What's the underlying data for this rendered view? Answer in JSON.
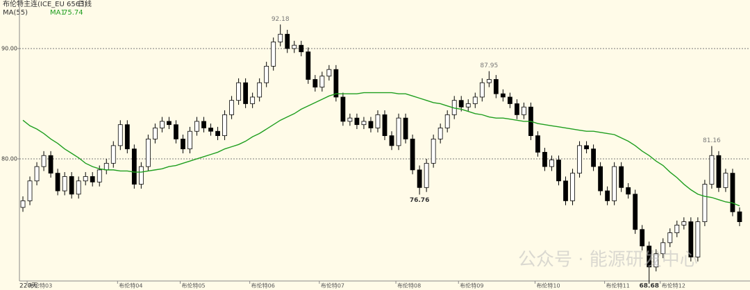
{
  "chart_data": {
    "type": "candlestick",
    "title": "布伦特主连(ICE_EU 6563)",
    "period": "日线",
    "indicator": "MA(55)",
    "ma_label": "MA1",
    "range_label": "220天",
    "watermark": "公众号 · 能源研发中心",
    "ylim": [
      68.93,
      94.4
    ],
    "yticks": [
      {
        "value": 80,
        "label": "80.00"
      },
      {
        "value": 90,
        "label": "90.00"
      }
    ],
    "grid": true,
    "up_color": "#ffffff",
    "down_color": "#000000",
    "ma_color": "#1e9e1e",
    "x_labels": [
      {
        "index": 2,
        "label": "布伦特03"
      },
      {
        "index": 15,
        "label": "布伦特04"
      },
      {
        "index": 24,
        "label": "布伦特05"
      },
      {
        "index": 34,
        "label": "布伦特06"
      },
      {
        "index": 44,
        "label": "布伦特07"
      },
      {
        "index": 55,
        "label": "布伦特08"
      },
      {
        "index": 64,
        "label": "布伦特09"
      },
      {
        "index": 75,
        "label": "布伦特10"
      },
      {
        "index": 85,
        "label": "布伦特11"
      },
      {
        "index": 93,
        "label": "布伦特12"
      }
    ],
    "high_labels": [
      37,
      67,
      99
    ],
    "low_labels": [
      57,
      90
    ],
    "open": [
      75.6,
      76.2,
      78.0,
      79.3,
      80.3,
      78.7,
      77.1,
      78.4,
      76.8,
      78.0,
      78.4,
      77.9,
      79.0,
      79.6,
      81.2,
      83.1,
      80.9,
      77.7,
      79.3,
      81.8,
      82.8,
      83.4,
      83.1,
      81.8,
      80.9,
      82.5,
      83.4,
      82.8,
      82.5,
      82.1,
      84.0,
      85.3,
      86.9,
      85.0,
      85.6,
      86.9,
      88.4,
      90.6,
      91.3,
      90.0,
      90.3,
      89.7,
      87.2,
      86.5,
      87.5,
      88.1,
      85.6,
      83.4,
      83.7,
      83.1,
      83.4,
      82.8,
      84.0,
      82.1,
      81.2,
      83.7,
      81.8,
      79.0,
      77.4,
      79.6,
      81.8,
      82.8,
      84.0,
      85.3,
      84.7,
      85.0,
      85.6,
      86.9,
      87.2,
      85.9,
      85.6,
      85.0,
      84.0,
      84.7,
      82.1,
      80.6,
      79.3,
      79.9,
      78.0,
      76.2,
      78.7,
      81.2,
      80.9,
      79.3,
      77.1,
      76.2,
      79.3,
      77.4,
      76.8,
      73.6,
      72.1,
      70.2,
      71.4,
      72.4,
      73.3,
      74.0,
      74.3,
      71.1,
      74.3,
      77.7,
      80.3,
      77.4,
      78.7,
      75.2
    ],
    "close": [
      76.2,
      78.0,
      79.3,
      80.3,
      78.7,
      77.1,
      78.4,
      76.8,
      78.0,
      78.4,
      77.9,
      79.0,
      79.6,
      81.2,
      83.1,
      80.9,
      77.7,
      79.3,
      81.8,
      82.8,
      83.4,
      83.1,
      81.8,
      80.9,
      82.5,
      83.4,
      82.8,
      82.5,
      82.1,
      84.0,
      85.3,
      86.9,
      85.0,
      85.6,
      86.9,
      88.4,
      90.6,
      91.3,
      90.0,
      90.3,
      89.7,
      87.2,
      86.5,
      87.5,
      88.1,
      85.6,
      83.4,
      83.7,
      83.1,
      83.4,
      82.8,
      84.0,
      82.1,
      81.2,
      83.7,
      81.8,
      79.0,
      77.4,
      79.6,
      81.8,
      82.8,
      84.0,
      85.3,
      84.7,
      85.0,
      85.6,
      86.9,
      87.2,
      85.9,
      85.6,
      85.0,
      84.0,
      84.7,
      82.1,
      80.6,
      79.3,
      79.9,
      78.0,
      76.2,
      78.7,
      81.2,
      80.9,
      79.3,
      77.1,
      76.2,
      79.3,
      77.4,
      76.8,
      73.6,
      72.1,
      70.2,
      71.4,
      72.4,
      73.3,
      74.0,
      74.3,
      71.1,
      74.3,
      77.7,
      80.3,
      77.4,
      78.7,
      75.2,
      74.3
    ],
    "high": [
      76.6,
      78.4,
      79.7,
      80.7,
      80.7,
      79.1,
      78.8,
      78.8,
      78.4,
      78.8,
      78.8,
      79.4,
      80.0,
      81.6,
      83.5,
      83.5,
      81.3,
      79.7,
      82.2,
      83.2,
      83.8,
      83.8,
      83.5,
      82.2,
      82.9,
      83.8,
      83.8,
      83.2,
      82.9,
      84.4,
      85.7,
      87.3,
      87.3,
      86.0,
      87.3,
      88.8,
      91.0,
      92.18,
      91.7,
      90.7,
      90.7,
      90.1,
      87.6,
      87.9,
      88.5,
      88.5,
      86.0,
      84.1,
      84.1,
      83.8,
      83.8,
      84.4,
      84.4,
      82.5,
      84.1,
      84.1,
      82.2,
      79.4,
      80.0,
      82.2,
      83.2,
      84.4,
      85.7,
      85.7,
      85.4,
      86.0,
      87.3,
      87.95,
      87.6,
      86.3,
      86.0,
      85.4,
      85.1,
      85.1,
      82.5,
      81.0,
      80.3,
      80.3,
      78.4,
      79.1,
      81.6,
      81.6,
      81.3,
      79.7,
      77.5,
      79.7,
      79.7,
      77.8,
      77.2,
      74.0,
      72.5,
      71.8,
      72.8,
      73.7,
      74.4,
      74.7,
      74.7,
      74.7,
      78.1,
      81.16,
      80.7,
      79.1,
      79.1,
      75.6
    ],
    "low": [
      75.2,
      75.8,
      77.6,
      78.9,
      78.3,
      76.7,
      76.7,
      76.4,
      76.4,
      77.6,
      77.5,
      77.5,
      78.6,
      79.2,
      80.8,
      80.5,
      77.3,
      77.3,
      78.9,
      81.4,
      82.4,
      82.7,
      81.4,
      80.5,
      80.5,
      82.1,
      82.4,
      82.1,
      81.7,
      81.7,
      83.6,
      84.9,
      84.6,
      84.6,
      85.2,
      86.5,
      88.0,
      90.2,
      89.6,
      89.6,
      89.3,
      86.8,
      86.1,
      86.1,
      87.1,
      85.2,
      83.0,
      83.0,
      82.7,
      82.7,
      82.4,
      82.4,
      81.7,
      80.8,
      80.8,
      81.4,
      78.6,
      76.76,
      77.0,
      79.2,
      81.4,
      82.4,
      83.6,
      84.3,
      84.3,
      84.6,
      85.2,
      86.5,
      85.5,
      85.2,
      84.6,
      83.6,
      83.6,
      81.7,
      80.2,
      78.9,
      78.9,
      77.6,
      75.8,
      75.8,
      78.3,
      80.5,
      78.9,
      76.7,
      75.8,
      75.8,
      77.0,
      76.4,
      73.2,
      71.7,
      68.68,
      69.8,
      71.0,
      72.0,
      72.9,
      73.6,
      70.7,
      70.7,
      73.9,
      77.3,
      77.0,
      77.0,
      74.8,
      73.9
    ],
    "ma": [
      83.5,
      83.0,
      82.7,
      82.3,
      81.8,
      81.4,
      80.9,
      80.5,
      80.1,
      79.6,
      79.3,
      79.1,
      79.0,
      79.0,
      78.9,
      78.9,
      78.8,
      78.8,
      78.9,
      79.0,
      79.1,
      79.3,
      79.4,
      79.6,
      79.8,
      80.0,
      80.2,
      80.4,
      80.6,
      80.9,
      81.1,
      81.3,
      81.6,
      82.0,
      82.3,
      82.7,
      83.1,
      83.5,
      83.8,
      84.1,
      84.5,
      84.8,
      85.1,
      85.4,
      85.7,
      85.9,
      85.9,
      85.9,
      85.9,
      86.0,
      86.0,
      86.0,
      86.0,
      86.0,
      85.9,
      85.9,
      85.7,
      85.5,
      85.3,
      85.1,
      85.0,
      84.8,
      84.6,
      84.5,
      84.3,
      84.1,
      84.0,
      83.8,
      83.7,
      83.7,
      83.6,
      83.5,
      83.4,
      83.4,
      83.2,
      83.1,
      83.0,
      82.9,
      82.8,
      82.7,
      82.6,
      82.5,
      82.5,
      82.4,
      82.3,
      82.2,
      81.9,
      81.6,
      81.2,
      80.7,
      80.3,
      79.8,
      79.4,
      78.8,
      78.3,
      77.7,
      77.2,
      76.8,
      76.6,
      76.5,
      76.3,
      76.1,
      76.0,
      75.74
    ]
  }
}
